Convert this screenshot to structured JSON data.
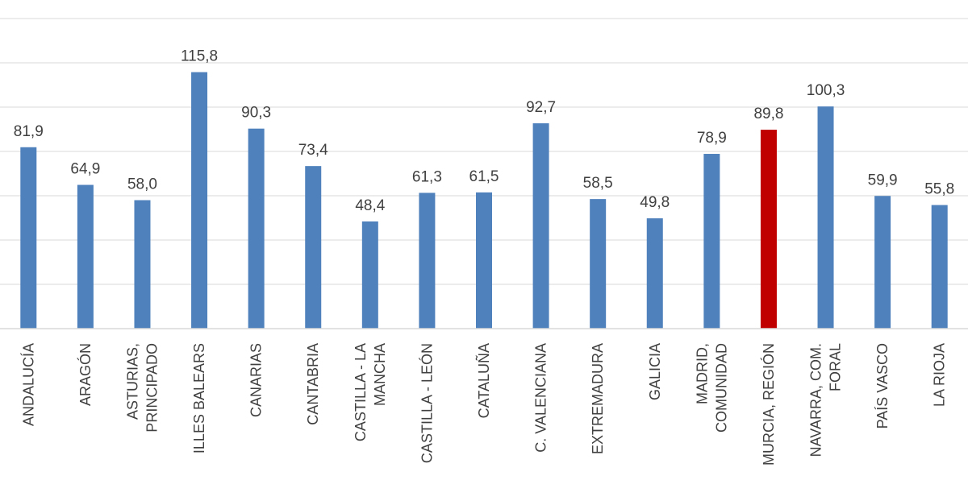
{
  "chart_data": {
    "type": "bar",
    "categories": [
      [
        "ANDALUCÍA"
      ],
      [
        "ARAGÓN"
      ],
      [
        "ASTURIAS,",
        "PRINCIPADO"
      ],
      [
        "ILLES BALEARS"
      ],
      [
        "CANARIAS"
      ],
      [
        "CANTABRIA"
      ],
      [
        "CASTILLA - LA",
        "MANCHA"
      ],
      [
        "CASTILLA - LEÓN"
      ],
      [
        "CATALUÑA"
      ],
      [
        "C. VALENCIANA"
      ],
      [
        "EXTREMADURA"
      ],
      [
        "GALICIA"
      ],
      [
        "MADRID,",
        "COMUNIDAD"
      ],
      [
        "MURCIA, REGIÓN"
      ],
      [
        "NAVARRA, COM.",
        "FORAL"
      ],
      [
        "PAÍS VASCO"
      ],
      [
        "LA RIOJA"
      ]
    ],
    "values": [
      81.9,
      64.9,
      58.0,
      115.8,
      90.3,
      73.4,
      48.4,
      61.3,
      61.5,
      92.7,
      58.5,
      49.8,
      78.9,
      89.8,
      100.3,
      59.9,
      55.8
    ],
    "value_labels": [
      "81,9",
      "64,9",
      "58,0",
      "115,8",
      "90,3",
      "73,4",
      "48,4",
      "61,3",
      "61,5",
      "92,7",
      "58,5",
      "49,8",
      "78,9",
      "89,8",
      "100,3",
      "59,9",
      "55,8"
    ],
    "highlight_index": 13,
    "colors": {
      "bar": "#4f81bd",
      "highlight": "#c00000"
    },
    "ylim": [
      0,
      140
    ],
    "gridline_step": 20,
    "grid": true,
    "legend": "none"
  }
}
